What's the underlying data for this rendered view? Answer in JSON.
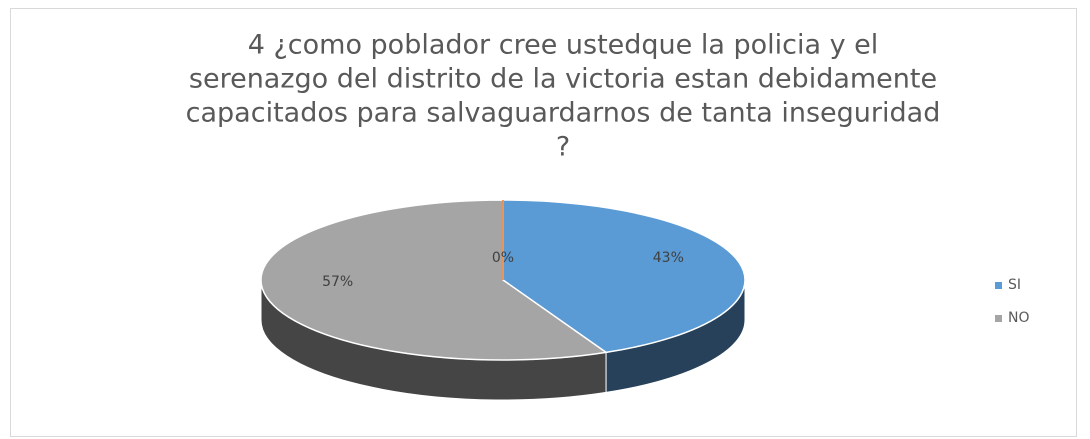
{
  "chart_data": {
    "type": "pie",
    "title": [
      "4 ¿como poblador cree ustedque la policia  y el",
      "serenazgo del distrito de la victoria estan debidamente",
      "capacitados para salvaguardarnos de tanta inseguridad",
      "?"
    ],
    "categories": [
      "SI",
      "NO",
      null
    ],
    "values": [
      43,
      57,
      0
    ],
    "value_labels": [
      "43%",
      "57%",
      "0%"
    ],
    "colors": [
      "#5b9bd5",
      "#a5a5a5",
      "#ed7d31"
    ],
    "legend": "right"
  }
}
